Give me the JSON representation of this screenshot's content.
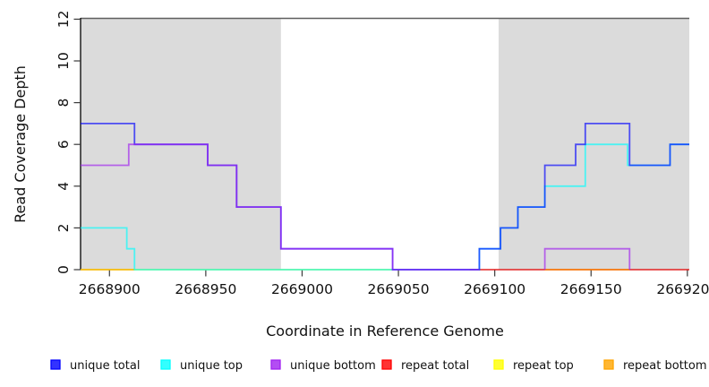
{
  "chart_data": {
    "type": "line",
    "subtype": "step-coverage",
    "title": "",
    "xlabel": "Coordinate in Reference Genome",
    "ylabel": "Read Coverage Depth",
    "xlim": [
      2668885,
      2669201
    ],
    "ylim": [
      0,
      12
    ],
    "grid": false,
    "xaxis": {
      "tick_values": [
        2668900,
        2668950,
        2669000,
        2669050,
        2669100,
        2669150,
        2669200
      ],
      "tick_labels": [
        "2668900",
        "2668950",
        "2669000",
        "2669050",
        "2669100",
        "2669150",
        "2669200"
      ]
    },
    "yaxis": {
      "tick_values": [
        0,
        2,
        4,
        6,
        8,
        10,
        12
      ],
      "tick_labels": [
        "0",
        "2",
        "4",
        "6",
        "8",
        "10",
        "12"
      ]
    },
    "shaded_regions": [
      {
        "from": 2668885,
        "to": 2668989,
        "color": "#DBDBDB"
      },
      {
        "from": 2669102,
        "to": 2669201,
        "color": "#DBDBDB"
      }
    ],
    "line_opacity": 0.65,
    "line_width": 1.8,
    "draw_order": [
      "repeat total",
      "repeat top",
      "repeat bottom",
      "unique top",
      "unique total",
      "unique bottom"
    ],
    "series": [
      {
        "name": "unique total",
        "color": "#0000FF",
        "segments": [
          [
            [
              2668885,
              7
            ],
            [
              2668913,
              6
            ],
            [
              2668951,
              5
            ],
            [
              2668966,
              3
            ],
            [
              2668989,
              1
            ],
            [
              2669047,
              0
            ],
            [
              2669092,
              1
            ],
            [
              2669103,
              2
            ],
            [
              2669112,
              3
            ],
            [
              2669126,
              5
            ],
            [
              2669142,
              6
            ],
            [
              2669147,
              7
            ],
            [
              2669170,
              5
            ],
            [
              2669191,
              6
            ],
            [
              2669201,
              6
            ]
          ]
        ]
      },
      {
        "name": "unique top",
        "color": "#00FFFF",
        "segments": [
          [
            [
              2668885,
              2
            ],
            [
              2668909,
              1
            ],
            [
              2668913,
              0
            ],
            [
              2669092,
              1
            ],
            [
              2669103,
              2
            ],
            [
              2669112,
              3
            ],
            [
              2669126,
              4
            ],
            [
              2669147,
              6
            ],
            [
              2669169,
              5
            ],
            [
              2669191,
              6
            ],
            [
              2669201,
              6
            ]
          ]
        ]
      },
      {
        "name": "unique bottom",
        "color": "#A020F0",
        "segments": [
          [
            [
              2668885,
              5
            ],
            [
              2668910,
              6
            ],
            [
              2668951,
              5
            ],
            [
              2668966,
              3
            ],
            [
              2668989,
              1
            ],
            [
              2669047,
              0
            ],
            [
              2669092,
              0
            ]
          ],
          [
            [
              2669126,
              0
            ],
            [
              2669126,
              1
            ],
            [
              2669170,
              0
            ]
          ]
        ]
      },
      {
        "name": "repeat total",
        "color": "#FF0000",
        "segments": [
          [
            [
              2669087,
              0
            ],
            [
              2669201,
              0
            ]
          ]
        ]
      },
      {
        "name": "repeat top",
        "color": "#FFFF00",
        "segments": [
          [
            [
              2668885,
              0
            ],
            [
              2669047,
              0
            ]
          ]
        ]
      },
      {
        "name": "repeat bottom",
        "color": "#FFA500",
        "segments": [
          [
            [
              2668885,
              0
            ],
            [
              2668913,
              0
            ]
          ],
          [
            [
              2669126,
              0
            ],
            [
              2669170,
              0
            ]
          ]
        ]
      }
    ],
    "legend": {
      "position": "bottom",
      "items": [
        {
          "label": "unique total",
          "color": "#0000FF"
        },
        {
          "label": "unique top",
          "color": "#00FFFF"
        },
        {
          "label": "unique bottom",
          "color": "#A020F0"
        },
        {
          "label": "repeat total",
          "color": "#FF0000"
        },
        {
          "label": "repeat top",
          "color": "#FFFF00"
        },
        {
          "label": "repeat bottom",
          "color": "#FFA500"
        }
      ]
    },
    "frame": {
      "top_line_color": "#5F5F5F",
      "axis_color": "#000000",
      "tick_color": "#3A3A3A"
    }
  }
}
